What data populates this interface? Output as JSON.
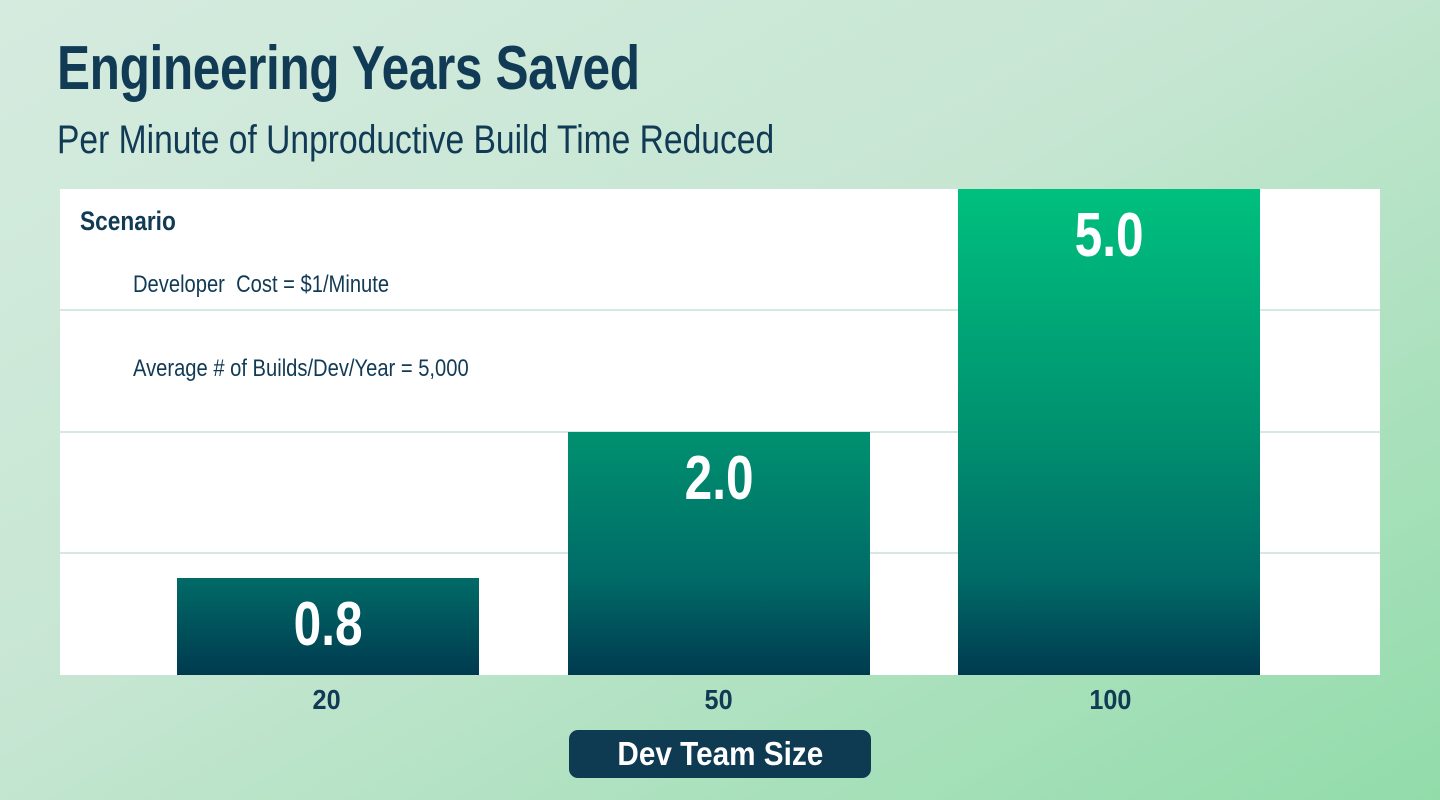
{
  "title": "Engineering Years Saved",
  "subtitle": "Per Minute of Unproductive Build Time Reduced",
  "scenario": {
    "heading": "Scenario",
    "lines": [
      "Developer  Cost = $1/Minute",
      "Average # of Builds/Dev/Year = 5,000"
    ]
  },
  "chart_data": {
    "type": "bar",
    "title": "Engineering Years Saved",
    "subtitle": "Per Minute of Unproductive Build Time Reduced",
    "categories": [
      "20",
      "50",
      "100"
    ],
    "values": [
      0.8,
      2.0,
      5.0
    ],
    "value_labels": [
      "0.8",
      "2.0",
      "5.0"
    ],
    "xlabel": "Dev Team Size",
    "ylabel": "",
    "ylim": [
      0,
      4
    ],
    "gridlines": "horizontal at 1, 2, 3 (unlabeled), plot top = 4",
    "notes": "tallest bar (5.0) is clipped flush with the top of the plot area; bars share one bottom-anchored green-to-navy gradient",
    "legend": "none"
  },
  "colors": {
    "background_start": "#d5ebdf",
    "background_mid": "#c6e6d2",
    "background_end": "#92dcaa",
    "text_navy": "#113a55",
    "plot_bg": "#ffffff",
    "gridline": "#d6e9df",
    "bar_gradient_top": "#00c07e",
    "bar_gradient_mid": "#009170",
    "bar_gradient_low": "#006b67",
    "bar_gradient_bottom": "#003a50",
    "badge_bg": "#0e3a52",
    "value_text": "#ffffff"
  }
}
